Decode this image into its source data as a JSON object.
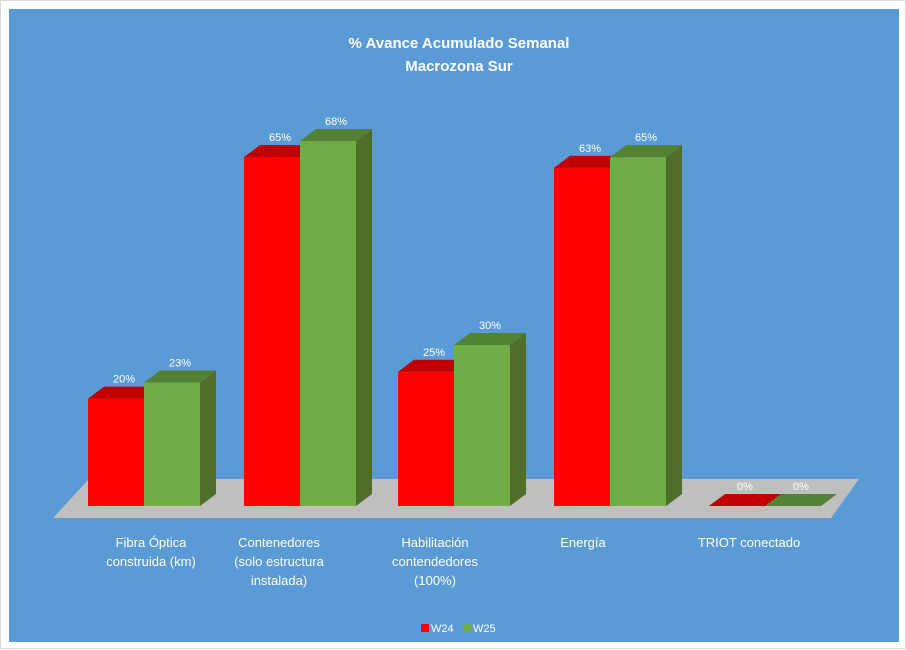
{
  "chart_data": {
    "type": "bar",
    "style": "3d-clustered-column",
    "title": "% Avance Acumulado Semanal",
    "subtitle": "Macrozona Sur",
    "categories": [
      [
        "Fibra Óptica",
        "construida (km)"
      ],
      [
        "Contenedores",
        "(solo estructura",
        "instalada)"
      ],
      [
        "Habilitación",
        "contendedores",
        "(100%)"
      ],
      [
        "Energía"
      ],
      [
        "TRIOT conectado"
      ]
    ],
    "series": [
      {
        "name": "W24",
        "values": [
          20,
          65,
          25,
          63,
          0
        ],
        "labels": [
          "20%",
          "65%",
          "25%",
          "63%",
          "0%"
        ],
        "color": "#ff0000"
      },
      {
        "name": "W25",
        "values": [
          23,
          68,
          30,
          65,
          0
        ],
        "labels": [
          "23%",
          "68%",
          "30%",
          "65%",
          "0%"
        ],
        "color": "#70ad47"
      }
    ],
    "ylim": [
      0,
      70
    ],
    "grid": false,
    "legend": "bottom",
    "colors": {
      "background": "#5b9bd5",
      "floor": "#bfbfbf",
      "text": "#ffffff",
      "w24_front": "#ff0000",
      "w24_side": "#a50000",
      "w24_top": "#c00000",
      "w25_front": "#70ad47",
      "w25_side": "#4e6e2a",
      "w25_top": "#548235"
    }
  }
}
